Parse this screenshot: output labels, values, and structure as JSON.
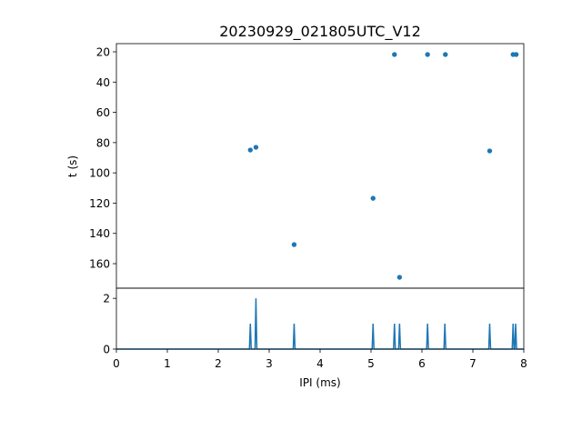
{
  "chart_data": [
    {
      "type": "scatter",
      "title": "20230929_021805UTC_V12",
      "xlabel": "",
      "ylabel": "t (s)",
      "xlim": [
        0,
        8
      ],
      "ylim": [
        176.2,
        14.6
      ],
      "y_inverted": true,
      "yticks": [
        20,
        40,
        60,
        80,
        100,
        120,
        140,
        160
      ],
      "color": "#1f77b4",
      "points": [
        {
          "x": 5.46,
          "y": 21.8
        },
        {
          "x": 6.11,
          "y": 21.8
        },
        {
          "x": 6.46,
          "y": 21.8
        },
        {
          "x": 7.79,
          "y": 21.8
        },
        {
          "x": 7.85,
          "y": 21.8
        },
        {
          "x": 2.63,
          "y": 84.9
        },
        {
          "x": 2.74,
          "y": 83.1
        },
        {
          "x": 7.33,
          "y": 85.5
        },
        {
          "x": 5.04,
          "y": 116.8
        },
        {
          "x": 3.49,
          "y": 147.4
        },
        {
          "x": 5.56,
          "y": 169.0
        }
      ]
    },
    {
      "type": "line",
      "xlabel": "IPI (ms)",
      "ylabel": "",
      "xlim": [
        0,
        8
      ],
      "ylim": [
        0,
        2.4
      ],
      "xticks": [
        0,
        1,
        2,
        3,
        4,
        5,
        6,
        7,
        8
      ],
      "yticks": [
        0,
        2
      ],
      "color": "#1f77b4",
      "spikes": [
        {
          "x": 2.63,
          "y": 1
        },
        {
          "x": 2.74,
          "y": 2
        },
        {
          "x": 3.49,
          "y": 1
        },
        {
          "x": 5.04,
          "y": 1
        },
        {
          "x": 5.46,
          "y": 1
        },
        {
          "x": 5.56,
          "y": 1
        },
        {
          "x": 6.11,
          "y": 1
        },
        {
          "x": 6.45,
          "y": 1
        },
        {
          "x": 7.33,
          "y": 1
        },
        {
          "x": 7.79,
          "y": 1
        },
        {
          "x": 7.84,
          "y": 1
        }
      ]
    }
  ]
}
